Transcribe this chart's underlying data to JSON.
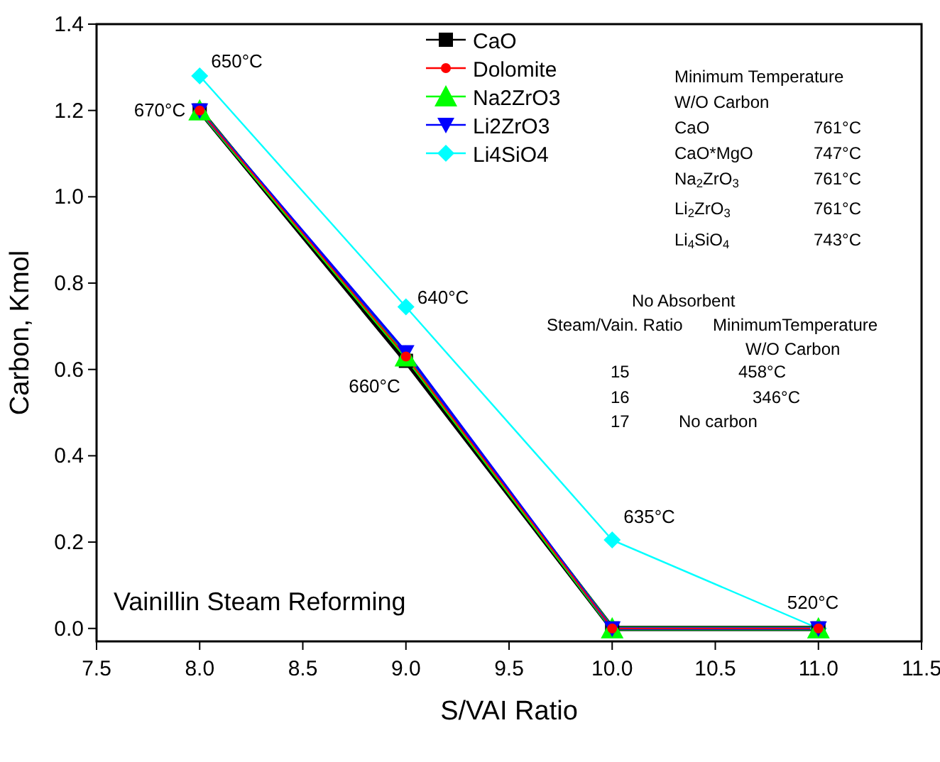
{
  "chart_data": {
    "type": "line",
    "title": "Vainillin Steam Reforming",
    "xlabel": "S/VAI Ratio",
    "ylabel": "Carbon, Kmol",
    "x": [
      8,
      9,
      10,
      11
    ],
    "series": [
      {
        "name": "CaO",
        "color": "#000000",
        "marker": "square",
        "values": [
          1.2,
          0.62,
          0,
          0
        ]
      },
      {
        "name": "Dolomite",
        "color": "#ff0000",
        "marker": "circle",
        "values": [
          1.2,
          0.63,
          0,
          0
        ]
      },
      {
        "name": "Na2ZrO3",
        "color": "#00ff00",
        "marker": "triangle",
        "values": [
          1.2,
          0.63,
          0,
          0
        ]
      },
      {
        "name": "Li2ZrO3",
        "color": "#0000ff",
        "marker": "triangle-down",
        "values": [
          1.2,
          0.64,
          0,
          0
        ]
      },
      {
        "name": "Li4SiO4",
        "color": "#00ffff",
        "marker": "diamond",
        "values": [
          1.28,
          0.745,
          0.205,
          0
        ]
      }
    ],
    "xlim": [
      7.5,
      11.5
    ],
    "xticks": [
      {
        "value": 7.5,
        "label": "7.5"
      },
      {
        "value": 8,
        "label": "8.0"
      },
      {
        "value": 8.5,
        "label": "8.5"
      },
      {
        "value": 9,
        "label": "9.0"
      },
      {
        "value": 9.5,
        "label": "9.5"
      },
      {
        "value": 10,
        "label": "10.0"
      },
      {
        "value": 10.5,
        "label": "10.5"
      },
      {
        "value": 11,
        "label": "11.0"
      },
      {
        "value": 11.5,
        "label": "11.5"
      }
    ],
    "ylim": [
      -0.03,
      1.4
    ],
    "yticks": [
      {
        "value": 0,
        "label": "0.0"
      },
      {
        "value": 0.2,
        "label": "0.2"
      },
      {
        "value": 0.4,
        "label": "0.4"
      },
      {
        "value": 0.6,
        "label": "0.6"
      },
      {
        "value": 0.8,
        "label": "0.8"
      },
      {
        "value": 1,
        "label": "1.0"
      },
      {
        "value": 1.2,
        "label": "1.2"
      },
      {
        "value": 1.4,
        "label": "1.4"
      }
    ],
    "grid": false,
    "legend": "top",
    "line_style": "solid",
    "annotations": [
      {
        "text": "650°C",
        "x": 8,
        "y": 1.28
      },
      {
        "text": "670°C",
        "x": 8,
        "y": 1.2
      },
      {
        "text": "640°C",
        "x": 9,
        "y": 0.745
      },
      {
        "text": "660°C",
        "x": 9,
        "y": 0.62
      },
      {
        "text": "635°C",
        "x": 10,
        "y": 0.205
      },
      {
        "text": "520°C",
        "x": 11,
        "y": 0
      },
      "Minimum Temperature",
      "W/O Carbon",
      "CaO\t761°C",
      "CaO*MgO\t747°C",
      "Na$_{2}$ZrO$_{3}$\t761°C",
      "Li$_{2}$ZrO$_{3}$\t761°C",
      "Li$_{4}$SiO$_{4}$\t743°C",
      "No Absorbent",
      "Steam/Vain. Ratio\tMinimumTemperature",
      "W/O Carbon",
      "15\t458°C",
      "16\t346°C",
      "17\tNo carbon"
    ]
  }
}
